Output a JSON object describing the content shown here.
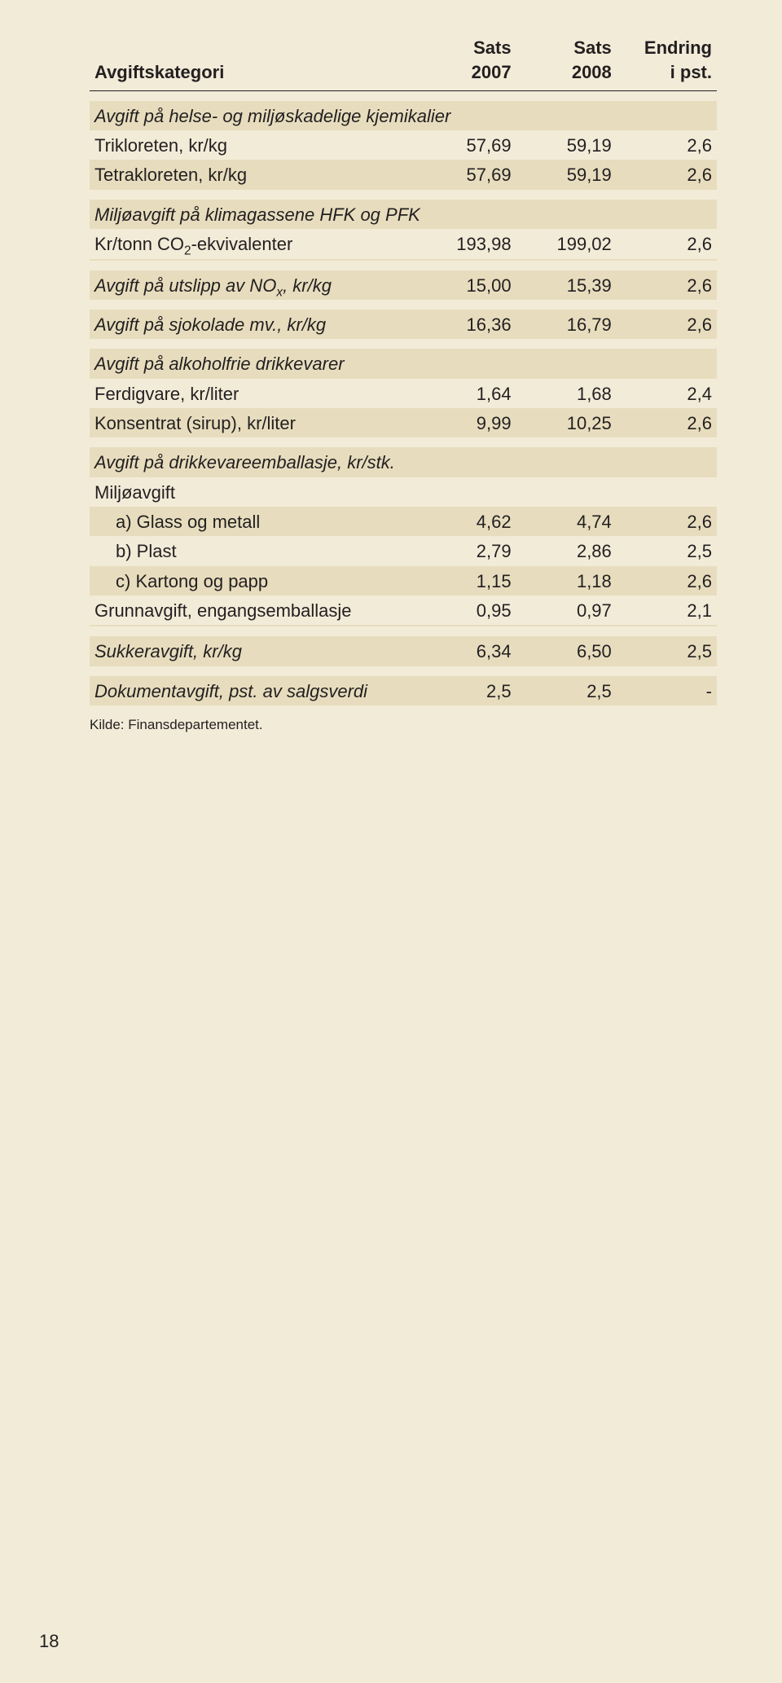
{
  "header": {
    "col0": "Avgiftskategori",
    "col1_a": "Sats",
    "col1_b": "2007",
    "col2_a": "Sats",
    "col2_b": "2008",
    "col3_a": "Endring",
    "col3_b": "i pst."
  },
  "rows": {
    "helse_heading": "Avgift på helse- og miljøskadelige kjemikalier",
    "trikloreten": {
      "label": "Trikloreten, kr/kg",
      "v1": "57,69",
      "v2": "59,19",
      "v3": "2,6"
    },
    "tetrakloreten": {
      "label": "Tetrakloreten, kr/kg",
      "v1": "57,69",
      "v2": "59,19",
      "v3": "2,6"
    },
    "klimagass_heading": "Miljøavgift på klimagassene HFK og PFK",
    "co2ekv": {
      "label_pre": "Kr/tonn CO",
      "label_sub": "2",
      "label_post": "-ekvivalenter",
      "v1": "193,98",
      "v2": "199,02",
      "v3": "2,6"
    },
    "nox": {
      "label_pre": "Avgift på utslipp av NO",
      "label_sub": "x",
      "label_post": ", kr/kg",
      "v1": "15,00",
      "v2": "15,39",
      "v3": "2,6"
    },
    "sjokolade": {
      "label": "Avgift på sjokolade mv., kr/kg",
      "v1": "16,36",
      "v2": "16,79",
      "v3": "2,6"
    },
    "alkoholfrie_heading": "Avgift på alkoholfrie drikkevarer",
    "ferdigvare": {
      "label": "Ferdigvare, kr/liter",
      "v1": "1,64",
      "v2": "1,68",
      "v3": "2,4"
    },
    "konsentrat": {
      "label": "Konsentrat (sirup), kr/liter",
      "v1": "9,99",
      "v2": "10,25",
      "v3": "2,6"
    },
    "emballasje_heading": "Avgift på drikkevareemballasje, kr/stk.",
    "miljoavgift_sub": "Miljøavgift",
    "glass": {
      "label": "a) Glass og metall",
      "v1": "4,62",
      "v2": "4,74",
      "v3": "2,6"
    },
    "plast": {
      "label": "b) Plast",
      "v1": "2,79",
      "v2": "2,86",
      "v3": "2,5"
    },
    "kartong": {
      "label": "c) Kartong og papp",
      "v1": "1,15",
      "v2": "1,18",
      "v3": "2,6"
    },
    "grunnavgift": {
      "label": "Grunnavgift, engangsemballasje",
      "v1": "0,95",
      "v2": "0,97",
      "v3": "2,1"
    },
    "sukker": {
      "label": "Sukkeravgift, kr/kg",
      "v1": "6,34",
      "v2": "6,50",
      "v3": "2,5"
    },
    "dokument": {
      "label": "Dokumentavgift, pst. av salgsverdi",
      "v1": "2,5",
      "v2": "2,5",
      "v3": "-"
    }
  },
  "source": "Kilde: Finansdepartementet.",
  "page_number": "18"
}
